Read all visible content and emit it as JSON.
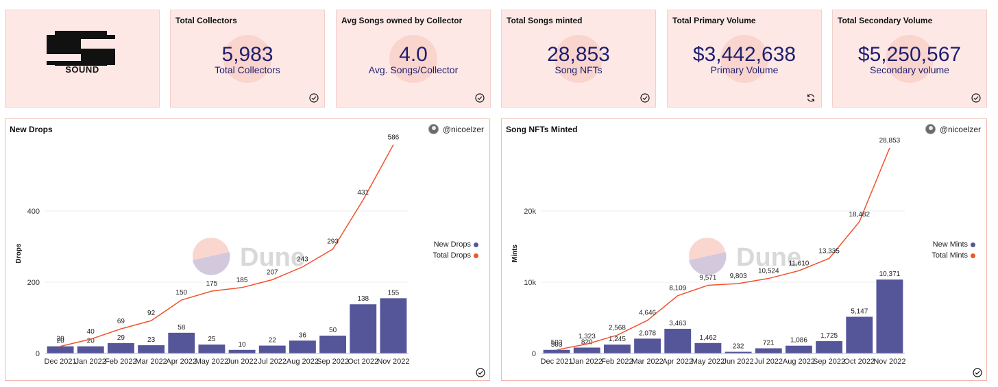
{
  "logo": {
    "text": "SOUND"
  },
  "kpis": [
    {
      "title": "Total Collectors",
      "value": "5,983",
      "sub": "Total Collectors",
      "status_icon": "check-circle-icon"
    },
    {
      "title": "Avg Songs owned by Collector",
      "value": "4.0",
      "sub": "Avg. Songs/Collector",
      "status_icon": "check-circle-icon"
    },
    {
      "title": "Total Songs minted",
      "value": "28,853",
      "sub": "Song NFTs",
      "status_icon": "check-circle-icon"
    },
    {
      "title": "Total Primary Volume",
      "value": "$3,442,638",
      "sub": "Primary Volume",
      "status_icon": "refresh-icon"
    },
    {
      "title": "Total Secondary Volume",
      "value": "$5,250,567",
      "sub": "Secondary volume",
      "status_icon": "check-circle-icon"
    }
  ],
  "colors": {
    "bar": "#55559a",
    "line": "#f0532d",
    "card_bg": "#fde8e6",
    "value_text": "#1e1f6e"
  },
  "watermark": "Dune",
  "chart_data": [
    {
      "type": "bar",
      "title": "New Drops",
      "author": "@nicoelzer",
      "ylabel": "Drops",
      "xlabel": "",
      "categories": [
        "Dec 2021",
        "Jan 2022",
        "Feb 2022",
        "Mar 2022",
        "Apr 2022",
        "May 2022",
        "Jun 2022",
        "Jul 2022",
        "Aug 2022",
        "Sep 2022",
        "Oct 2022",
        "Nov 2022"
      ],
      "series": [
        {
          "name": "New Drops",
          "type": "bar",
          "color": "#55559a",
          "values": [
            20,
            20,
            29,
            23,
            58,
            25,
            10,
            22,
            36,
            50,
            138,
            155
          ]
        },
        {
          "name": "Total Drops",
          "type": "line",
          "color": "#f0532d",
          "values": [
            20,
            40,
            69,
            92,
            150,
            175,
            185,
            207,
            243,
            293,
            431,
            586
          ]
        }
      ],
      "ylim": [
        0,
        600
      ],
      "yticks": [
        0,
        200,
        400
      ],
      "ytick_labels": [
        "0",
        "200",
        "400"
      ],
      "grid": true,
      "legend": "right"
    },
    {
      "type": "bar",
      "title": "Song NFTs Minted",
      "author": "@nicoelzer",
      "ylabel": "Mints",
      "xlabel": "",
      "categories": [
        "Dec 2021",
        "Jan 2022",
        "Feb 2022",
        "Mar 2022",
        "Apr 2022",
        "May 2022",
        "Jun 2022",
        "Jul 2022",
        "Aug 2022",
        "Sep 2022",
        "Oct 2022",
        "Nov 2022"
      ],
      "series": [
        {
          "name": "New Mints",
          "type": "bar",
          "color": "#55559a",
          "values": [
            503,
            820,
            1245,
            2078,
            3463,
            1462,
            232,
            721,
            1086,
            1725,
            5147,
            10371
          ]
        },
        {
          "name": "Total Mints",
          "type": "line",
          "color": "#f0532d",
          "values": [
            503,
            1323,
            2568,
            4646,
            8109,
            9571,
            9803,
            10524,
            11610,
            13335,
            18482,
            28853
          ]
        }
      ],
      "ylim": [
        0,
        30000
      ],
      "yticks": [
        0,
        10000,
        20000
      ],
      "ytick_labels": [
        "0",
        "10k",
        "20k"
      ],
      "grid": true,
      "legend": "right"
    }
  ]
}
